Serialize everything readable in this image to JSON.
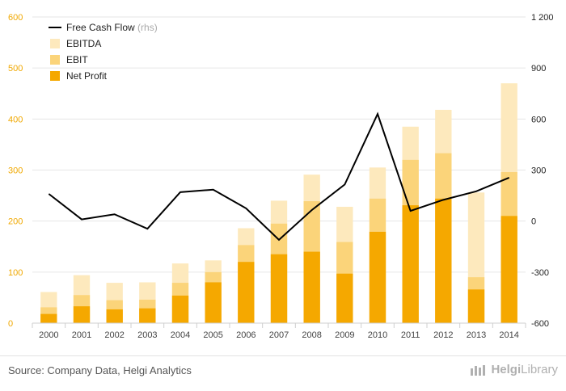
{
  "chart_data": {
    "type": "bar",
    "categories": [
      "2000",
      "2001",
      "2002",
      "2003",
      "2004",
      "2005",
      "2006",
      "2007",
      "2008",
      "2009",
      "2010",
      "2011",
      "2012",
      "2013",
      "2014"
    ],
    "series": [
      {
        "name": "EBITDA",
        "kind": "stacked-bar-total",
        "color": "#fde9bd",
        "values": [
          61,
          94,
          79,
          80,
          117,
          123,
          186,
          240,
          291,
          228,
          305,
          385,
          418,
          256,
          470
        ]
      },
      {
        "name": "EBIT",
        "kind": "stacked-bar-total",
        "color": "#fbd47a",
        "values": [
          31,
          55,
          45,
          46,
          79,
          100,
          153,
          195,
          239,
          159,
          244,
          320,
          333,
          90,
          296
        ]
      },
      {
        "name": "Net Profit",
        "kind": "bar",
        "color": "#f5a800",
        "values": [
          18,
          33,
          27,
          29,
          54,
          80,
          120,
          135,
          140,
          97,
          179,
          231,
          244,
          66,
          210
        ]
      },
      {
        "name": "Free Cash Flow",
        "note": "(rhs)",
        "kind": "line",
        "axis": "right",
        "color": "#000000",
        "values": [
          160,
          10,
          40,
          -45,
          170,
          185,
          75,
          -110,
          65,
          215,
          630,
          60,
          125,
          175,
          255
        ]
      }
    ],
    "y_left": {
      "min": 0,
      "max": 600,
      "ticks": [
        "0",
        "100",
        "200",
        "300",
        "400",
        "500",
        "600"
      ],
      "color": "#f0a800"
    },
    "y_right": {
      "min": -600,
      "max": 1200,
      "ticks": [
        "-600",
        "-300",
        "0",
        "300",
        "600",
        "900",
        "1 200"
      ]
    },
    "legend": {
      "placement": "top-left",
      "order": [
        "Free Cash Flow",
        "EBITDA",
        "EBIT",
        "Net Profit"
      ]
    },
    "grid": true
  },
  "footer": {
    "source": "Source: Company Data, Helgi Analytics",
    "brand_prefix": "Helgi",
    "brand_suffix": "Library"
  }
}
